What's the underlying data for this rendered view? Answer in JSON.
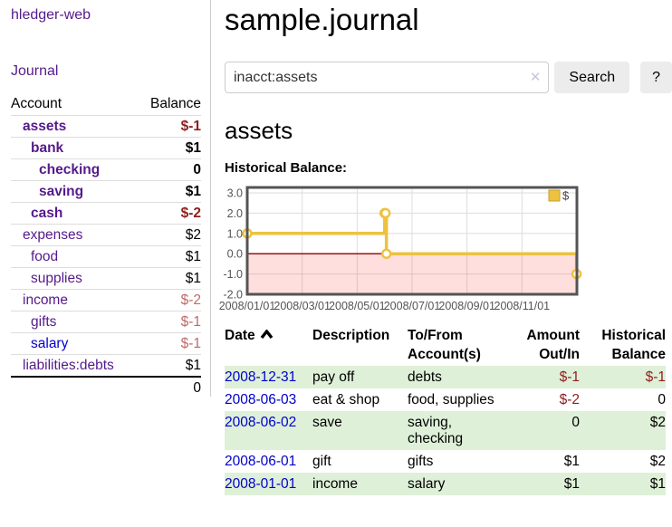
{
  "app": {
    "title": "hledger-web"
  },
  "colors": {
    "link_purple": "#551a8b",
    "link_blue": "#0000cc",
    "negative_strong": "#8f1d1d",
    "negative_soft": "#c06a6a",
    "row_green": "#dff0d8",
    "series_gold": "#edc240",
    "zero_line": "#8b0000",
    "grid_line": "#dddddd",
    "chart_border": "#545454"
  },
  "sidebar": {
    "journal_label": "Journal",
    "headers": {
      "account": "Account",
      "balance": "Balance"
    },
    "accounts": [
      {
        "account": "assets",
        "balance": "$-1",
        "indent": 1,
        "bold": true,
        "negative": "strong"
      },
      {
        "account": "bank",
        "balance": "$1",
        "indent": 2,
        "bold": true,
        "negative": null
      },
      {
        "account": "checking",
        "balance": "0",
        "indent": 3,
        "bold": true,
        "negative": null
      },
      {
        "account": "saving",
        "balance": "$1",
        "indent": 3,
        "bold": true,
        "negative": null
      },
      {
        "account": "cash",
        "balance": "$-2",
        "indent": 2,
        "bold": true,
        "negative": "strong"
      },
      {
        "account": "expenses",
        "balance": "$2",
        "indent": 1,
        "bold": false,
        "negative": null
      },
      {
        "account": "food",
        "balance": "$1",
        "indent": 2,
        "bold": false,
        "negative": null
      },
      {
        "account": "supplies",
        "balance": "$1",
        "indent": 2,
        "bold": false,
        "negative": null
      },
      {
        "account": "income",
        "balance": "$-2",
        "indent": 1,
        "bold": false,
        "negative": "soft"
      },
      {
        "account": "gifts",
        "balance": "$-1",
        "indent": 2,
        "bold": false,
        "negative": "soft"
      },
      {
        "account": "salary",
        "balance": "$-1",
        "indent": 2,
        "bold": false,
        "negative": "soft",
        "link_color": "blue"
      },
      {
        "account": "liabilities:debts",
        "balance": "$1",
        "indent": 1,
        "bold": false,
        "negative": null
      }
    ],
    "total": "0"
  },
  "main": {
    "title": "sample.journal",
    "search": {
      "value": "inacct:assets",
      "clear_icon": "✕",
      "search_label": "Search",
      "help_label": "?"
    },
    "account_heading": "assets"
  },
  "chart_data": {
    "type": "line",
    "title": "Historical Balance:",
    "step": true,
    "series": [
      {
        "name": "$",
        "color": "#edc240",
        "points": [
          [
            "2008/01/01",
            1
          ],
          [
            "2008/06/01",
            2
          ],
          [
            "2008/06/02",
            2
          ],
          [
            "2008/06/03",
            0
          ],
          [
            "2008/12/31",
            -1
          ]
        ]
      }
    ],
    "ylim": [
      -2,
      3
    ],
    "yticks": [
      "3.0",
      "2.0",
      "1.0",
      "0.0",
      "-1.0",
      "-2.0"
    ],
    "xticks": [
      "2008/01/01",
      "2008/03/01",
      "2008/05/01",
      "2008/07/01",
      "2008/09/01",
      "2008/11/01"
    ],
    "legend_position": "top-right",
    "grid": true,
    "negative_region_shaded": true,
    "zero_line": true
  },
  "register": {
    "headers": {
      "date": "Date",
      "description": "Description",
      "accounts": "To/From\nAccount(s)",
      "amount": "Amount\nOut/In",
      "balance": "Historical\nBalance"
    },
    "sort": {
      "column": "date",
      "direction": "ascending"
    },
    "rows": [
      {
        "date": "2008-12-31",
        "description": "pay off",
        "accounts": "debts",
        "amount": "$-1",
        "balance": "$-1",
        "amount_negative": true,
        "balance_negative": true,
        "shaded": true
      },
      {
        "date": "2008-06-03",
        "description": "eat & shop",
        "accounts": "food, supplies",
        "amount": "$-2",
        "balance": "0",
        "amount_negative": true,
        "balance_negative": false,
        "shaded": false
      },
      {
        "date": "2008-06-02",
        "description": "save",
        "accounts": "saving,\nchecking",
        "amount": "0",
        "balance": "$2",
        "amount_negative": false,
        "balance_negative": false,
        "shaded": true
      },
      {
        "date": "2008-06-01",
        "description": "gift",
        "accounts": "gifts",
        "amount": "$1",
        "balance": "$2",
        "amount_negative": false,
        "balance_negative": false,
        "shaded": false
      },
      {
        "date": "2008-01-01",
        "description": "income",
        "accounts": "salary",
        "amount": "$1",
        "balance": "$1",
        "amount_negative": false,
        "balance_negative": false,
        "shaded": true
      }
    ]
  }
}
